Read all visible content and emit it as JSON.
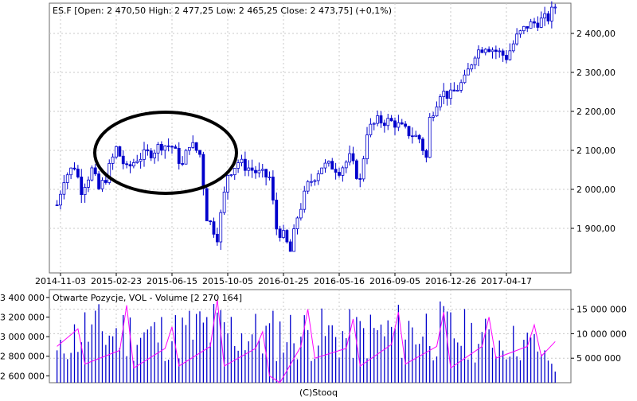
{
  "chart_data": [
    {
      "type": "candlestick",
      "title": "ES.F [Open: 2 470,50  High: 2 477,25  Low: 2 465,25  Close: 2 473,75] (+0,1%)",
      "xlabel": "",
      "ylabel": "",
      "x_tick_labels": [
        "2014-11-03",
        "2015-02-23",
        "2015-06-15",
        "2015-10-05",
        "2016-01-25",
        "2016-05-16",
        "2016-09-05",
        "2016-12-26",
        "2017-04-17"
      ],
      "y_tick_labels": [
        "1 900,00",
        "2 000,00",
        "2 100,00",
        "2 200,00",
        "2 300,00",
        "2 400,00"
      ],
      "y_ticks": [
        1900,
        2000,
        2100,
        2200,
        2300,
        2400
      ],
      "ylim": [
        1805,
        2490
      ],
      "grid": true,
      "series_color": "#0000cc",
      "annotation": {
        "type": "ellipse",
        "color": "#000000",
        "x_range": [
          "2015-02-09",
          "2015-10-19"
        ],
        "y_range": [
          1985,
          2140
        ]
      },
      "close_points": [
        {
          "x": "2014-10-27",
          "y": 1960
        },
        {
          "x": "2014-11-10",
          "y": 2030
        },
        {
          "x": "2014-12-01",
          "y": 2060
        },
        {
          "x": "2014-12-15",
          "y": 2000
        },
        {
          "x": "2015-01-05",
          "y": 2050
        },
        {
          "x": "2015-01-19",
          "y": 2000
        },
        {
          "x": "2015-02-02",
          "y": 2030
        },
        {
          "x": "2015-02-23",
          "y": 2105
        },
        {
          "x": "2015-03-16",
          "y": 2050
        },
        {
          "x": "2015-04-06",
          "y": 2080
        },
        {
          "x": "2015-05-04",
          "y": 2095
        },
        {
          "x": "2015-05-25",
          "y": 2115
        },
        {
          "x": "2015-06-15",
          "y": 2110
        },
        {
          "x": "2015-07-06",
          "y": 2060
        },
        {
          "x": "2015-07-20",
          "y": 2120
        },
        {
          "x": "2015-08-10",
          "y": 2090
        },
        {
          "x": "2015-08-24",
          "y": 1930
        },
        {
          "x": "2015-09-14",
          "y": 1880
        },
        {
          "x": "2015-10-05",
          "y": 2040
        },
        {
          "x": "2015-10-26",
          "y": 2070
        },
        {
          "x": "2015-11-09",
          "y": 2060
        },
        {
          "x": "2015-12-07",
          "y": 2040
        },
        {
          "x": "2015-12-28",
          "y": 2030
        },
        {
          "x": "2016-01-11",
          "y": 1900
        },
        {
          "x": "2016-01-25",
          "y": 1880
        },
        {
          "x": "2016-02-08",
          "y": 1840
        },
        {
          "x": "2016-02-22",
          "y": 1930
        },
        {
          "x": "2016-03-14",
          "y": 2010
        },
        {
          "x": "2016-04-11",
          "y": 2060
        },
        {
          "x": "2016-05-02",
          "y": 2060
        },
        {
          "x": "2016-05-16",
          "y": 2050
        },
        {
          "x": "2016-06-06",
          "y": 2080
        },
        {
          "x": "2016-06-27",
          "y": 2020
        },
        {
          "x": "2016-07-11",
          "y": 2150
        },
        {
          "x": "2016-08-01",
          "y": 2175
        },
        {
          "x": "2016-08-22",
          "y": 2175
        },
        {
          "x": "2016-09-05",
          "y": 2170
        },
        {
          "x": "2016-09-26",
          "y": 2150
        },
        {
          "x": "2016-10-24",
          "y": 2130
        },
        {
          "x": "2016-11-07",
          "y": 2080
        },
        {
          "x": "2016-11-14",
          "y": 2180
        },
        {
          "x": "2016-12-05",
          "y": 2250
        },
        {
          "x": "2016-12-26",
          "y": 2240
        },
        {
          "x": "2017-01-23",
          "y": 2280
        },
        {
          "x": "2017-02-13",
          "y": 2350
        },
        {
          "x": "2017-03-06",
          "y": 2370
        },
        {
          "x": "2017-04-17",
          "y": 2340
        },
        {
          "x": "2017-05-08",
          "y": 2390
        },
        {
          "x": "2017-05-29",
          "y": 2420
        },
        {
          "x": "2017-06-19",
          "y": 2430
        },
        {
          "x": "2017-07-10",
          "y": 2440
        },
        {
          "x": "2017-07-24",
          "y": 2470
        }
      ]
    },
    {
      "type": "bar+line",
      "title": "Otwarte Pozycje, VOL - Volume [2 270 164]",
      "left_axis": {
        "tick_labels": [
          "2 600 000",
          "2 800 000",
          "3 000 000",
          "3 200 000",
          "3 400 000"
        ],
        "ticks": [
          2600000,
          2800000,
          3000000,
          3200000,
          3400000
        ],
        "range": [
          2530000,
          3480000
        ]
      },
      "right_axis": {
        "tick_labels": [
          "5 000 000",
          "10 000 000",
          "15 000 000"
        ],
        "ticks": [
          5000000,
          10000000,
          15000000
        ],
        "range": [
          0,
          19000000
        ]
      },
      "grid": true,
      "series": [
        {
          "name": "Volume",
          "type": "bar",
          "color": "#0000cc",
          "axis": "right"
        },
        {
          "name": "Otwarte Pozycje",
          "type": "line",
          "color": "#ff00ff",
          "axis": "left"
        }
      ],
      "volume_points": [
        {
          "x": "2014-10-27",
          "v": 8000000
        },
        {
          "x": "2014-12-15",
          "v": 17000000
        },
        {
          "x": "2015-03-16",
          "v": 16000000
        },
        {
          "x": "2015-06-15",
          "v": 15000000
        },
        {
          "x": "2015-08-24",
          "v": 18000000
        },
        {
          "x": "2015-12-14",
          "v": 15000000
        },
        {
          "x": "2016-01-25",
          "v": 16000000
        },
        {
          "x": "2016-06-20",
          "v": 15000000
        },
        {
          "x": "2016-11-07",
          "v": 18000000
        },
        {
          "x": "2017-03-13",
          "v": 13500000
        },
        {
          "x": "2017-06-12",
          "v": 11500000
        },
        {
          "x": "2017-07-24",
          "v": 2270164
        }
      ],
      "open_interest_points": [
        {
          "x": "2014-10-27",
          "y": 2900000
        },
        {
          "x": "2014-12-08",
          "y": 3080000
        },
        {
          "x": "2014-12-22",
          "y": 2720000
        },
        {
          "x": "2015-03-02",
          "y": 2860000
        },
        {
          "x": "2015-03-16",
          "y": 3320000
        },
        {
          "x": "2015-03-30",
          "y": 2680000
        },
        {
          "x": "2015-06-01",
          "y": 2880000
        },
        {
          "x": "2015-06-15",
          "y": 3100000
        },
        {
          "x": "2015-06-29",
          "y": 2700000
        },
        {
          "x": "2015-08-31",
          "y": 2900000
        },
        {
          "x": "2015-09-14",
          "y": 3380000
        },
        {
          "x": "2015-09-28",
          "y": 2700000
        },
        {
          "x": "2015-11-30",
          "y": 2880000
        },
        {
          "x": "2015-12-14",
          "y": 3050000
        },
        {
          "x": "2015-12-28",
          "y": 2600000
        },
        {
          "x": "2016-01-18",
          "y": 2530000
        },
        {
          "x": "2016-02-29",
          "y": 2900000
        },
        {
          "x": "2016-03-14",
          "y": 3280000
        },
        {
          "x": "2016-03-28",
          "y": 2780000
        },
        {
          "x": "2016-05-30",
          "y": 2880000
        },
        {
          "x": "2016-06-13",
          "y": 3180000
        },
        {
          "x": "2016-06-27",
          "y": 2700000
        },
        {
          "x": "2016-08-29",
          "y": 2920000
        },
        {
          "x": "2016-09-12",
          "y": 3250000
        },
        {
          "x": "2016-09-26",
          "y": 2720000
        },
        {
          "x": "2016-11-28",
          "y": 2900000
        },
        {
          "x": "2016-12-12",
          "y": 3250000
        },
        {
          "x": "2016-12-26",
          "y": 2680000
        },
        {
          "x": "2017-02-27",
          "y": 2900000
        },
        {
          "x": "2017-03-13",
          "y": 3200000
        },
        {
          "x": "2017-03-27",
          "y": 2780000
        },
        {
          "x": "2017-05-29",
          "y": 2900000
        },
        {
          "x": "2017-06-12",
          "y": 3120000
        },
        {
          "x": "2017-06-26",
          "y": 2800000
        },
        {
          "x": "2017-07-24",
          "y": 2950000
        }
      ]
    }
  ],
  "footer": {
    "copyright": "(C)Stooq"
  }
}
